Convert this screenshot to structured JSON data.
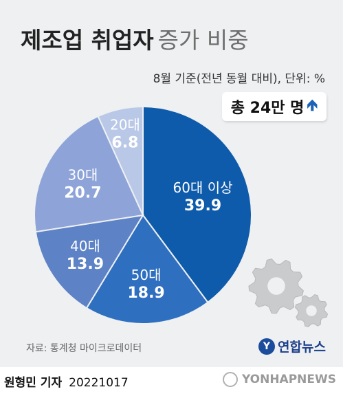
{
  "header": {
    "title_bold": "제조업 취업자",
    "title_light": "증가 비중",
    "subtitle": "8월 기준(전년 동월 대비), 단위: %",
    "callout": "총 24만 명"
  },
  "chart_data": {
    "type": "pie",
    "title": "제조업 취업자 증가 비중",
    "unit": "%",
    "slices": [
      {
        "label": "60대 이상",
        "value": 39.9,
        "value_label": "39.9",
        "color": "#0f5bab"
      },
      {
        "label": "50대",
        "value": 18.9,
        "value_label": "18.9",
        "color": "#2f6fc0"
      },
      {
        "label": "40대",
        "value": 13.9,
        "value_label": "13.9",
        "color": "#5d82c6"
      },
      {
        "label": "30대",
        "value": 20.7,
        "value_label": "20.7",
        "color": "#8ea4d8"
      },
      {
        "label": "20대",
        "value": 6.8,
        "value_label": "6.8",
        "color": "#bac8e8"
      }
    ],
    "start": "12 o'clock",
    "direction": "clockwise"
  },
  "footer": {
    "source": "자료: 통계청 마이크로데이터",
    "logo": "연합뉴스",
    "author": "원형민 기자",
    "date": "20221017",
    "watermark": "YONHAPNEWS"
  },
  "colors": {
    "background": "#eef0f2",
    "accent": "#1a63b8",
    "gear": "#c9cbcd"
  },
  "icons": [
    "gear-icon",
    "up-arrow-icon",
    "yonhap-logo-icon"
  ]
}
